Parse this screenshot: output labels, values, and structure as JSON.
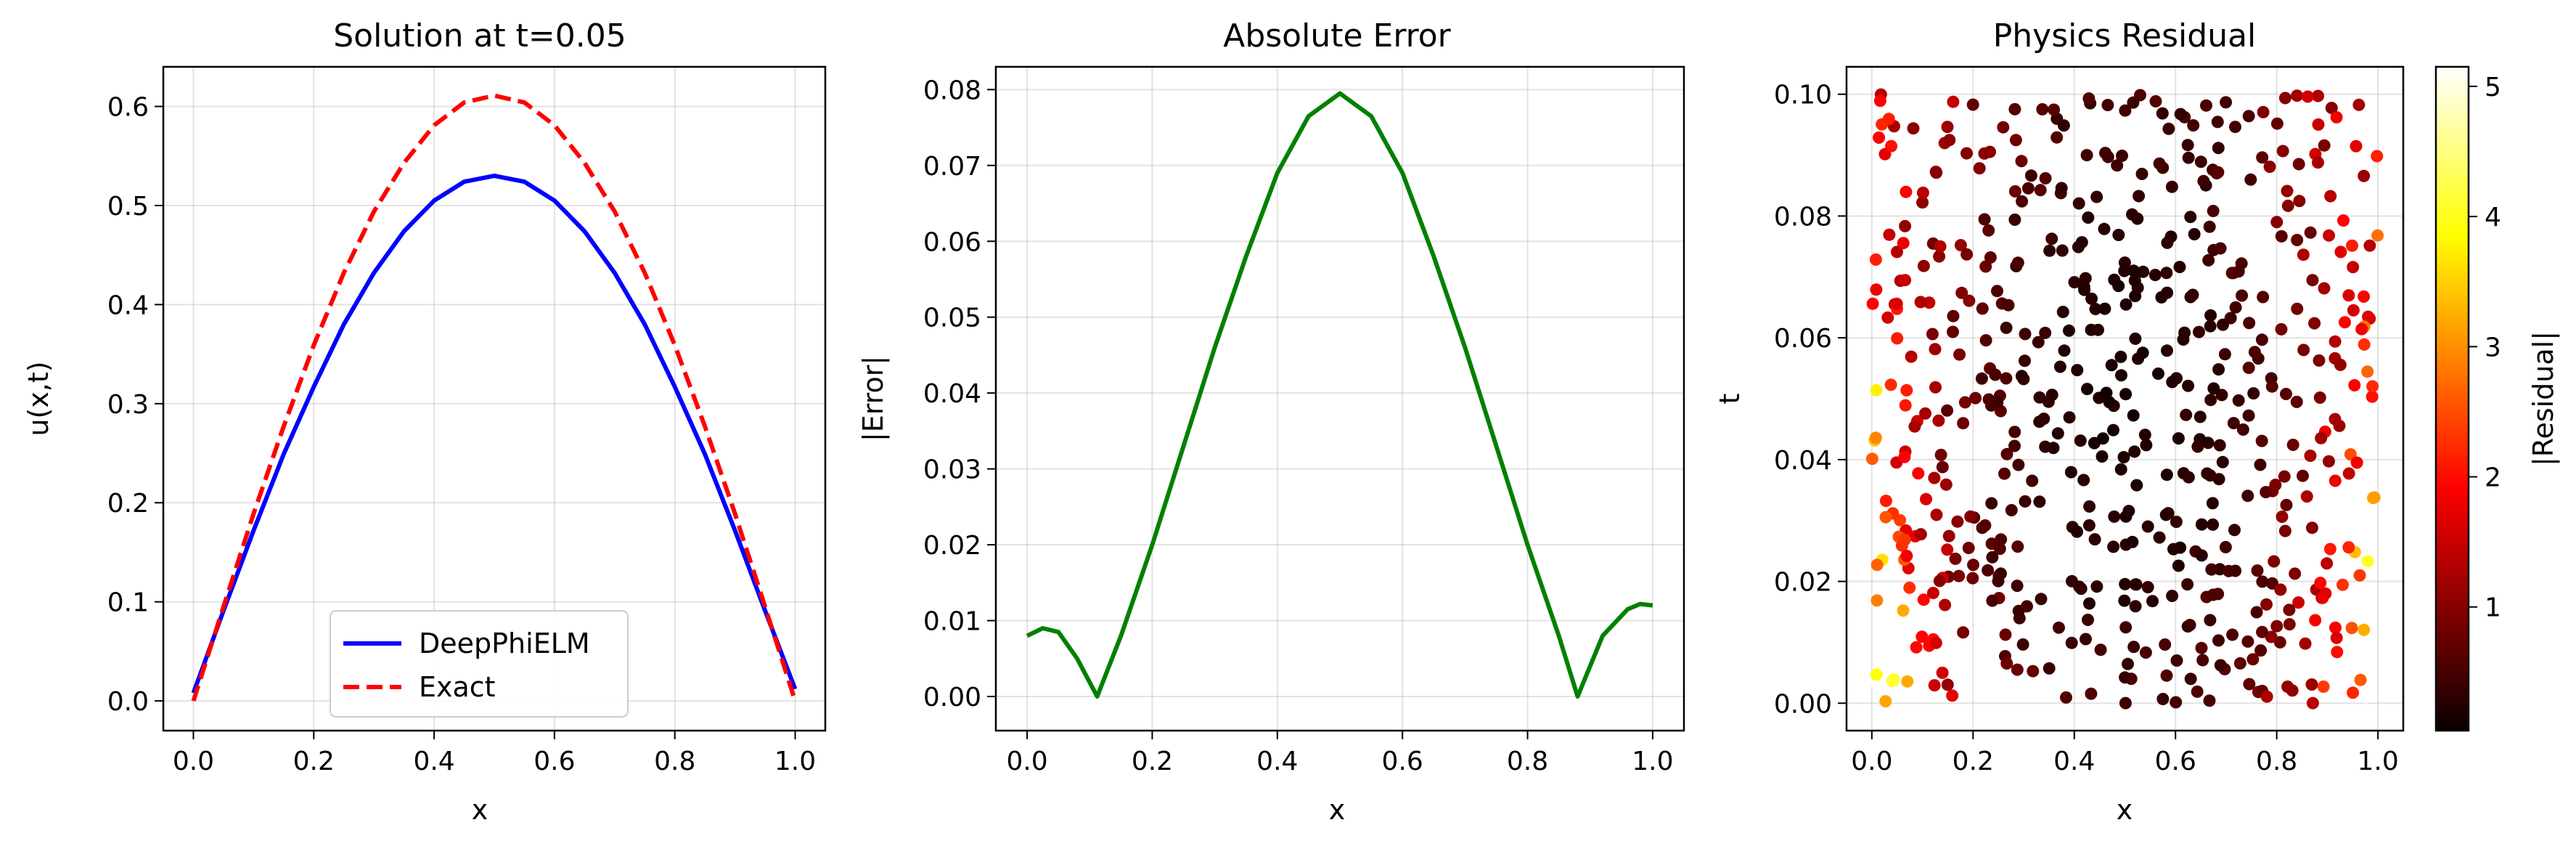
{
  "chart_data": [
    {
      "type": "line",
      "title": "Solution at t=0.05",
      "xlabel": "x",
      "ylabel": "u(x,t)",
      "xlim": [
        -0.05,
        1.05
      ],
      "ylim": [
        -0.03,
        0.64
      ],
      "xticks": [
        "0.0",
        "0.2",
        "0.4",
        "0.6",
        "0.8",
        "1.0"
      ],
      "yticks": [
        "0.0",
        "0.1",
        "0.2",
        "0.3",
        "0.4",
        "0.5",
        "0.6"
      ],
      "grid": true,
      "legend": "lower-center",
      "x": [
        0.0,
        0.05,
        0.1,
        0.15,
        0.2,
        0.25,
        0.3,
        0.35,
        0.4,
        0.45,
        0.5,
        0.55,
        0.6,
        0.65,
        0.7,
        0.75,
        0.8,
        0.85,
        0.9,
        0.95,
        1.0
      ],
      "series": [
        {
          "name": "DeepPhiELM",
          "color": "#0000ff",
          "style": "solid",
          "values": [
            0.008,
            0.091,
            0.172,
            0.249,
            0.317,
            0.38,
            0.432,
            0.474,
            0.505,
            0.524,
            0.53,
            0.524,
            0.505,
            0.474,
            0.432,
            0.38,
            0.317,
            0.249,
            0.172,
            0.091,
            0.012
          ]
        },
        {
          "name": "Exact",
          "color": "#ff0000",
          "style": "dashed",
          "values": [
            0.0,
            0.095,
            0.189,
            0.277,
            0.359,
            0.432,
            0.494,
            0.543,
            0.581,
            0.604,
            0.611,
            0.604,
            0.581,
            0.543,
            0.494,
            0.432,
            0.359,
            0.277,
            0.189,
            0.095,
            0.0
          ]
        }
      ]
    },
    {
      "type": "line",
      "title": "Absolute Error",
      "xlabel": "x",
      "ylabel": "|Error|",
      "xlim": [
        -0.05,
        1.05
      ],
      "ylim": [
        -0.0045,
        0.083
      ],
      "xticks": [
        "0.0",
        "0.2",
        "0.4",
        "0.6",
        "0.8",
        "1.0"
      ],
      "yticks": [
        "0.00",
        "0.01",
        "0.02",
        "0.03",
        "0.04",
        "0.05",
        "0.06",
        "0.07",
        "0.08"
      ],
      "grid": true,
      "x": [
        0.0,
        0.025,
        0.05,
        0.08,
        0.112,
        0.15,
        0.2,
        0.25,
        0.3,
        0.35,
        0.4,
        0.45,
        0.5,
        0.55,
        0.6,
        0.65,
        0.7,
        0.75,
        0.8,
        0.85,
        0.88,
        0.92,
        0.96,
        0.98,
        1.0
      ],
      "series": [
        {
          "color": "#008000",
          "values": [
            0.008,
            0.009,
            0.0085,
            0.005,
            0.0,
            0.008,
            0.02,
            0.033,
            0.046,
            0.058,
            0.069,
            0.0765,
            0.0795,
            0.0765,
            0.069,
            0.058,
            0.046,
            0.033,
            0.02,
            0.008,
            0.0,
            0.008,
            0.0115,
            0.0122,
            0.012
          ]
        }
      ]
    },
    {
      "type": "scatter",
      "title": "Physics Residual",
      "xlabel": "x",
      "ylabel": "t",
      "xlim": [
        -0.05,
        1.05
      ],
      "ylim": [
        -0.0045,
        0.1045
      ],
      "xticks": [
        "0.0",
        "0.2",
        "0.4",
        "0.6",
        "0.8",
        "1.0"
      ],
      "yticks": [
        "0.00",
        "0.02",
        "0.04",
        "0.06",
        "0.08",
        "0.10"
      ],
      "grid": true,
      "colorbar": {
        "label": "|Residual|",
        "colormap": "hot",
        "range": [
          0.05,
          5.15
        ],
        "ticks": [
          "1",
          "2",
          "3",
          "4",
          "5"
        ]
      },
      "points": {
        "count": 600,
        "x_range": [
          0.0,
          1.0
        ],
        "t_range": [
          0.0,
          0.1
        ],
        "pattern": "residual lowest (~0.1) near x=0.5, t=0.05; rises toward the edges; highest (~4-5) near x=0 and x=1 at small t"
      }
    }
  ]
}
